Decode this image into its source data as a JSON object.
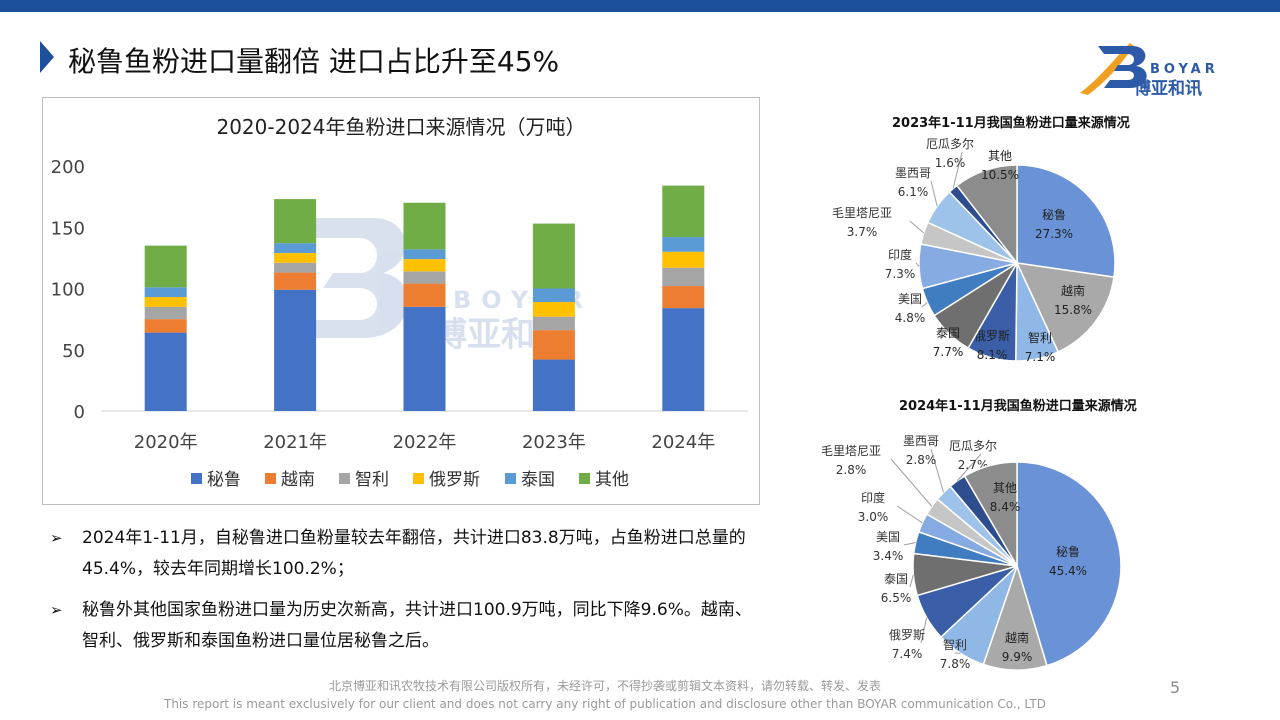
{
  "header": {
    "title": "秘鲁鱼粉进口量翻倍 进口占比升至45%",
    "accent_color": "#1e4f9c"
  },
  "logo": {
    "en": "BOYAR",
    "cn": "博亚和讯"
  },
  "chart_data": [
    {
      "type": "bar",
      "stacked": true,
      "title": "2020-2024年鱼粉进口来源情况（万吨）",
      "categories": [
        "2020年",
        "2021年",
        "2022年",
        "2023年",
        "2024年"
      ],
      "ylim": [
        0,
        200
      ],
      "yticks": [
        "0",
        "50",
        "100",
        "150",
        "200"
      ],
      "legend_position": "bottom",
      "series": [
        {
          "name": "秘鲁",
          "color": "#4472c4",
          "values": [
            64,
            99,
            85,
            42,
            84
          ]
        },
        {
          "name": "越南",
          "color": "#ed7d31",
          "values": [
            11,
            14,
            19,
            24,
            18
          ]
        },
        {
          "name": "智利",
          "color": "#a5a5a5",
          "values": [
            10,
            8,
            10,
            11,
            15
          ]
        },
        {
          "name": "俄罗斯",
          "color": "#ffc000",
          "values": [
            8,
            8,
            10,
            12,
            13
          ]
        },
        {
          "name": "泰国",
          "color": "#5b9bd5",
          "values": [
            8,
            8,
            8,
            11,
            12
          ]
        },
        {
          "name": "其他",
          "color": "#70ad47",
          "values": [
            34,
            36,
            38,
            53,
            42
          ]
        }
      ]
    },
    {
      "type": "pie",
      "title": "2023年1-11月我国鱼粉进口量来源情况",
      "slices": [
        {
          "label": "秘鲁",
          "value": 27.3,
          "text": "27.3%",
          "color": "#6a92d6"
        },
        {
          "label": "越南",
          "value": 15.8,
          "text": "15.8%",
          "color": "#a9a9a9"
        },
        {
          "label": "智利",
          "value": 7.1,
          "text": "7.1%",
          "color": "#8fb8e6"
        },
        {
          "label": "俄罗斯",
          "value": 8.1,
          "text": "8.1%",
          "color": "#3a5ea8"
        },
        {
          "label": "泰国",
          "value": 7.7,
          "text": "7.7%",
          "color": "#6f6f6f"
        },
        {
          "label": "美国",
          "value": 4.8,
          "text": "4.8%",
          "color": "#3f7cc0"
        },
        {
          "label": "印度",
          "value": 7.3,
          "text": "7.3%",
          "color": "#86abe2"
        },
        {
          "label": "毛里塔尼亚",
          "value": 3.7,
          "text": "3.7%",
          "color": "#c6c6c6"
        },
        {
          "label": "墨西哥",
          "value": 6.1,
          "text": "6.1%",
          "color": "#9dc3ea"
        },
        {
          "label": "厄瓜多尔",
          "value": 1.6,
          "text": "1.6%",
          "color": "#2d4d8e"
        },
        {
          "label": "其他",
          "value": 10.5,
          "text": "10.5%",
          "color": "#8c8c8c"
        }
      ]
    },
    {
      "type": "pie",
      "title": "2024年1-11月我国鱼粉进口量来源情况",
      "slices": [
        {
          "label": "秘鲁",
          "value": 45.4,
          "text": "45.4%",
          "color": "#6a92d6"
        },
        {
          "label": "越南",
          "value": 9.9,
          "text": "9.9%",
          "color": "#a9a9a9"
        },
        {
          "label": "智利",
          "value": 7.8,
          "text": "7.8%",
          "color": "#8fb8e6"
        },
        {
          "label": "俄罗斯",
          "value": 7.4,
          "text": "7.4%",
          "color": "#3a5ea8"
        },
        {
          "label": "泰国",
          "value": 6.5,
          "text": "6.5%",
          "color": "#6f6f6f"
        },
        {
          "label": "美国",
          "value": 3.4,
          "text": "3.4%",
          "color": "#3f7cc0"
        },
        {
          "label": "印度",
          "value": 3.0,
          "text": "3.0%",
          "color": "#86abe2"
        },
        {
          "label": "毛里塔尼亚",
          "value": 2.8,
          "text": "2.8%",
          "color": "#c6c6c6"
        },
        {
          "label": "墨西哥",
          "value": 2.8,
          "text": "2.8%",
          "color": "#9dc3ea"
        },
        {
          "label": "厄瓜多尔",
          "value": 2.7,
          "text": "2.7%",
          "color": "#2d4d8e"
        },
        {
          "label": "其他",
          "value": 8.4,
          "text": "8.4%",
          "color": "#8c8c8c"
        }
      ]
    }
  ],
  "bullets": [
    "2024年1-11月，自秘鲁进口鱼粉量较去年翻倍，共计进口83.8万吨，占鱼粉进口总量的45.4%，较去年同期增长100.2%；",
    "秘鲁外其他国家鱼粉进口量为历史次新高，共计进口100.9万吨，同比下降9.6%。越南、智利、俄罗斯和泰国鱼粉进口量位居秘鲁之后。"
  ],
  "bullet_symbol": "➢",
  "footer": {
    "cn": "北京博亚和讯农牧技术有限公司版权所有，未经许可，不得抄袭或剪辑文本资料，请勿转载、转发、发表",
    "en": "This report is meant exclusively for our client and does not carry any right of publication and disclosure other than BOYAR communication Co., LTD",
    "page": "5"
  }
}
